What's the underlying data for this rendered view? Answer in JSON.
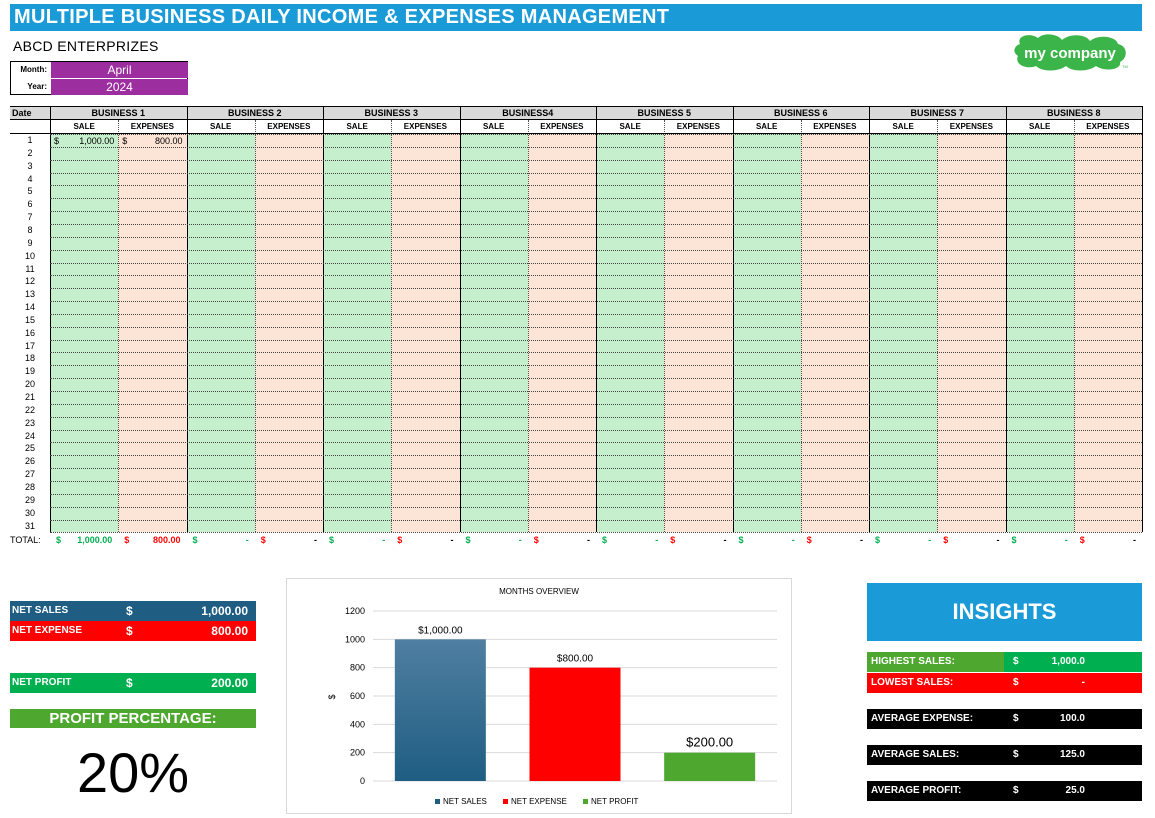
{
  "header": {
    "title": "MULTIPLE BUSINESS DAILY INCOME & EXPENSES  MANAGEMENT",
    "company": "ABCD ENTERPRIZES",
    "month_label": "Month:",
    "month_value": "April",
    "year_label": "Year:",
    "year_value": "2024",
    "logo_text": "my company",
    "logo_tm": "TM"
  },
  "table": {
    "date_header": "Date",
    "businesses": [
      "BUSINESS 1",
      "BUSINESS 2",
      "BUSINESS 3",
      "BUSINESS4",
      "BUSINESS 5",
      "BUSINESS 6",
      "BUSINESS 7",
      "BUSINESS 8"
    ],
    "sale_label": "SALE",
    "expenses_label": "EXPENSES",
    "days": [
      "1",
      "2",
      "3",
      "4",
      "5",
      "6",
      "7",
      "8",
      "9",
      "10",
      "11",
      "12",
      "13",
      "14",
      "15",
      "16",
      "17",
      "18",
      "19",
      "20",
      "21",
      "22",
      "23",
      "24",
      "25",
      "26",
      "27",
      "28",
      "29",
      "30",
      "31"
    ],
    "row1": {
      "cur": "$",
      "sale": "1,000.00",
      "expense": "800.00"
    },
    "total_label": "TOTAL:",
    "totals": [
      {
        "sale": "1,000.00",
        "expense": "800.00"
      },
      {
        "sale": "-",
        "expense": "-"
      },
      {
        "sale": "-",
        "expense": "-"
      },
      {
        "sale": "-",
        "expense": "-"
      },
      {
        "sale": "-",
        "expense": "-"
      },
      {
        "sale": "-",
        "expense": "-"
      },
      {
        "sale": "-",
        "expense": "-"
      },
      {
        "sale": "-",
        "expense": "-"
      }
    ]
  },
  "summary": {
    "net_sales_label": "NET SALES",
    "net_sales_value": "1,000.00",
    "net_expense_label": "NET EXPENSE",
    "net_expense_value": "800.00",
    "net_profit_label": "NET PROFIT",
    "net_profit_value": "200.00",
    "currency": "$",
    "profit_pct_label": "PROFIT PERCENTAGE:",
    "profit_pct_value": "20%"
  },
  "chart_data": {
    "type": "bar",
    "title": "MONTHS OVERVIEW",
    "ylabel": "$",
    "categories": [
      "NET SALES",
      "NET EXPENSE",
      "NET PROFIT"
    ],
    "values": [
      1000,
      800,
      200
    ],
    "data_labels": [
      "$1,000.00",
      "$800.00",
      "$200.00"
    ],
    "colors": [
      "#1f5d82",
      "#ff0000",
      "#4ea72e"
    ],
    "ylim": [
      0,
      1200
    ],
    "yticks": [
      "0",
      "200",
      "400",
      "600",
      "800",
      "1000",
      "1200"
    ],
    "legend_position": "bottom",
    "legend": [
      "NET SALES",
      "NET EXPENSE",
      "NET PROFIT"
    ]
  },
  "insights": {
    "title": "INSIGHTS",
    "currency": "$",
    "highest_sales_label": "HIGHEST SALES:",
    "highest_sales_value": "1,000.0",
    "lowest_sales_label": "LOWEST SALES:",
    "lowest_sales_value": "-",
    "average_expense_label": "AVERAGE EXPENSE:",
    "average_expense_value": "100.0",
    "average_sales_label": "AVERAGE SALES:",
    "average_sales_value": "125.0",
    "average_profit_label": "AVERAGE PROFIT:",
    "average_profit_value": "25.0"
  },
  "colors": {
    "title_blue": "#1a9bd7",
    "month_purple": "#9d2ea0",
    "sale_green": "#c6efce",
    "expense_peach": "#fce4d6",
    "net_sales_bg": "#1f5d82",
    "net_expense_bg": "#ff0000",
    "net_profit_bg": "#00b050",
    "highest_bg": "#4ea72e",
    "lowest_bg": "#ff0000",
    "avg_bg": "#000000"
  }
}
